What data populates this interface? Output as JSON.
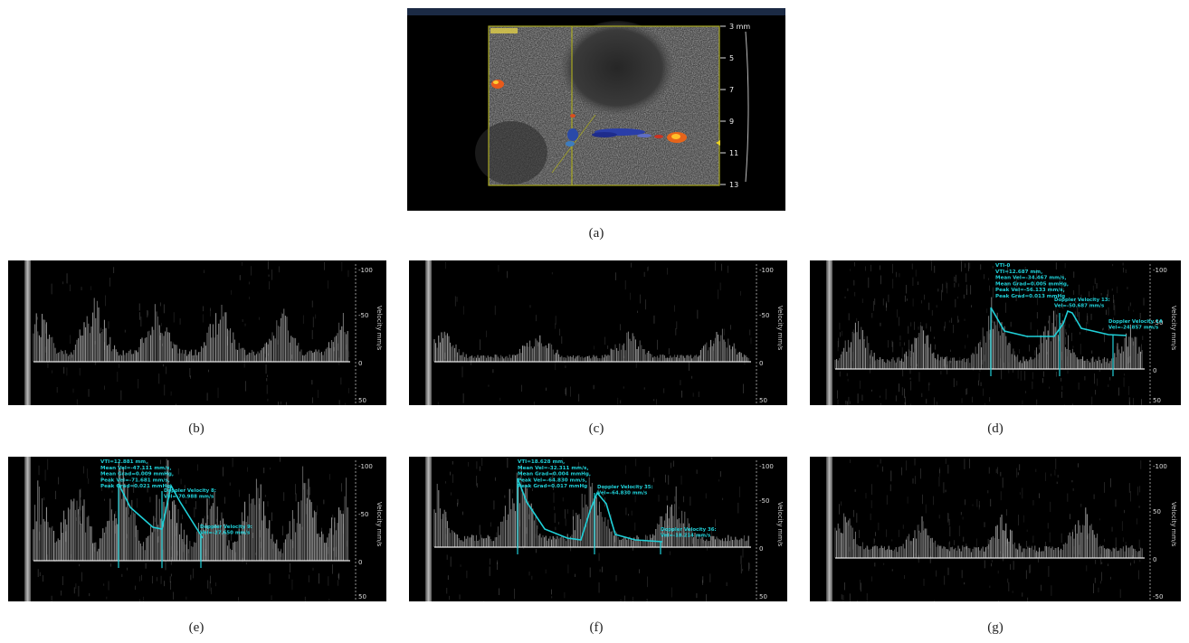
{
  "figure": {
    "background": "#ffffff",
    "caption_color": "#222222",
    "annotation_color": "#1fd0d8",
    "trace_color": "#d8d8d8"
  },
  "panel_a": {
    "caption": "(a)",
    "depth_scale": [
      "3 mm",
      "5",
      "7",
      "9",
      "11",
      "13"
    ]
  },
  "doppler_panels": [
    {
      "id": "b",
      "caption": "(b)",
      "axis_label": "Velocity mm/s",
      "ticks": [
        "-100",
        "-50",
        "0",
        "50"
      ],
      "annotations": []
    },
    {
      "id": "c",
      "caption": "(c)",
      "axis_label": "Velocity mm/s",
      "ticks": [
        "-100",
        "-50",
        "0",
        "50"
      ],
      "annotations": []
    },
    {
      "id": "d",
      "caption": "(d)",
      "axis_label": "Velocity mm/s",
      "ticks": [
        "-100",
        "-50",
        "0",
        "50"
      ],
      "annotations": [
        {
          "kind": "vti",
          "lines": [
            "VTI-0",
            "VTI=12.687 mm,",
            "Mean Vel=-34.467 mm/s,",
            "Mean Grad=0.005 mmHg,",
            "Peak Vel=-56.133 mm/s,",
            "Peak Grad=0.013 mmHg"
          ]
        },
        {
          "kind": "velocity",
          "lines": [
            "Doppler Velocity 13:",
            "Vel=-50.687 mm/s"
          ]
        },
        {
          "kind": "velocity",
          "lines": [
            "Doppler Velocity 14",
            "Vel=-24.857 mm/s"
          ]
        }
      ]
    },
    {
      "id": "e",
      "caption": "(e)",
      "axis_label": "Velocity mm/s",
      "ticks": [
        "-100",
        "-50",
        "0",
        "50"
      ],
      "annotations": [
        {
          "kind": "vti",
          "lines": [
            "VTI=12.881 mm,",
            "Mean Vel=-47.111 mm/s,",
            "Mean Grad=0.009 mmHg,",
            "Peak Vel=-71.681 mm/s,",
            "Peak Grad=0.021 mmHg"
          ]
        },
        {
          "kind": "velocity",
          "lines": [
            "Doppler Velocity 8:",
            "Vel=-70.988 mm/s"
          ]
        },
        {
          "kind": "velocity",
          "lines": [
            "Doppler Velocity 9:",
            "Vel=-27.650 mm/s"
          ]
        }
      ]
    },
    {
      "id": "f",
      "caption": "(f)",
      "axis_label": "Velocity mm/s",
      "ticks": [
        "-100",
        "-50",
        "0",
        "50"
      ],
      "annotations": [
        {
          "kind": "vti",
          "lines": [
            "VTI=18.628 mm,",
            "Mean Vel=-32.311 mm/s,",
            "Mean Grad=0.004 mmHg,",
            "Peak Vel=-64.830 mm/s,",
            "Peak Grad=0.017 mmHg"
          ]
        },
        {
          "kind": "velocity",
          "lines": [
            "Doppler Velocity 35:",
            "Vel=-64.830 mm/s"
          ]
        },
        {
          "kind": "velocity",
          "lines": [
            "Doppler Velocity 36:",
            "Vel=-18.214 mm/s"
          ]
        }
      ]
    },
    {
      "id": "g",
      "caption": "(g)",
      "axis_label": "Velocity mm/s",
      "ticks": [
        "-100",
        "50",
        "0",
        "-50"
      ],
      "annotations": []
    }
  ]
}
